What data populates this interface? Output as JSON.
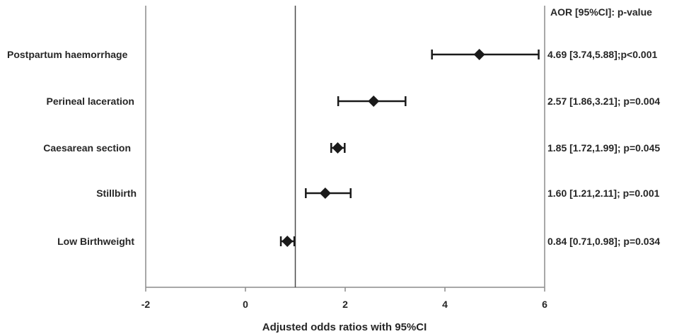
{
  "chart_data": {
    "type": "forest",
    "xlabel": "Adjusted odds ratios with 95%CI",
    "xlim": [
      -2,
      6
    ],
    "x_ticks": [
      "-2",
      "0",
      "2",
      "4",
      "6"
    ],
    "reference_line": 1,
    "right_header": "AOR [95%CI]: p-value",
    "rows": [
      {
        "label": "Postpartum haemorrhage",
        "aor": 4.69,
        "lower": 3.74,
        "upper": 5.88,
        "annotation": "4.69 [3.74,5.88];p<0.001"
      },
      {
        "label": "Perineal laceration",
        "aor": 2.57,
        "lower": 1.86,
        "upper": 3.21,
        "annotation": "2.57 [1.86,3.21]; p=0.004"
      },
      {
        "label": "Caesarean section",
        "aor": 1.85,
        "lower": 1.72,
        "upper": 1.99,
        "annotation": "1.85 [1.72,1.99]; p=0.045"
      },
      {
        "label": "Stillbirth",
        "aor": 1.6,
        "lower": 1.21,
        "upper": 2.11,
        "annotation": "1.60 [1.21,2.11]; p=0.001"
      },
      {
        "label": "Low Birthweight",
        "aor": 0.84,
        "lower": 0.71,
        "upper": 0.98,
        "annotation": "0.84 [0.71,0.98]; p=0.034"
      }
    ]
  }
}
